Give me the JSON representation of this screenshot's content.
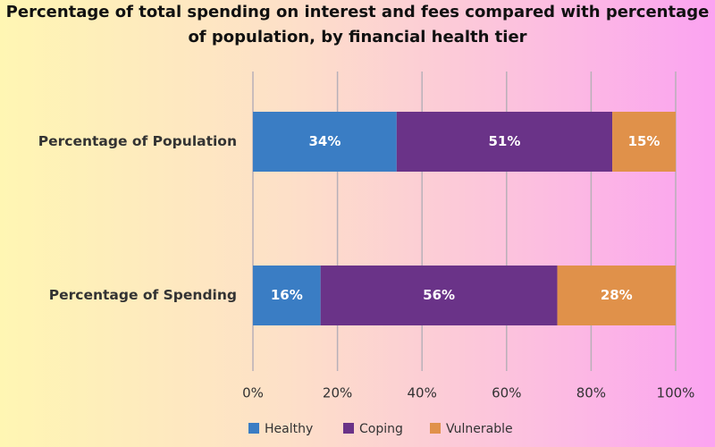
{
  "chart_data": {
    "type": "stacked-bar",
    "orientation": "horizontal",
    "title": [
      "Percentage of total spending on interest and fees compared with percentage",
      "of population, by financial health tier"
    ],
    "categories": [
      "Percentage of Population",
      "Percentage of Spending"
    ],
    "series": [
      {
        "name": "Healthy",
        "color": "#3a7dc4",
        "values": [
          34,
          16
        ],
        "value_labels": [
          "34%",
          "16%"
        ]
      },
      {
        "name": "Coping",
        "color": "#6a3388",
        "values": [
          51,
          56
        ],
        "value_labels": [
          "51%",
          "56%"
        ]
      },
      {
        "name": "Vulnerable",
        "color": "#e0914a",
        "values": [
          15,
          28
        ],
        "value_labels": [
          "15%",
          "28%"
        ]
      }
    ],
    "xlim": [
      0,
      100
    ],
    "xticks": [
      {
        "value": 0,
        "label": "0%"
      },
      {
        "value": 20,
        "label": "20%"
      },
      {
        "value": 40,
        "label": "40%"
      },
      {
        "value": 60,
        "label": "60%"
      },
      {
        "value": 80,
        "label": "80%"
      },
      {
        "value": 100,
        "label": "100%"
      }
    ],
    "grid": true,
    "legend": "bottom"
  }
}
